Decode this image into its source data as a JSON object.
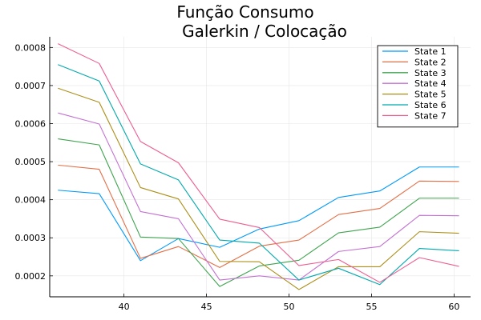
{
  "chart_data": {
    "type": "line",
    "title_line1": "Função Consumo",
    "title_line2": "Galerkin / Colocação",
    "xlabel": "",
    "ylabel": "",
    "xlim": [
      35.5,
      61.0
    ],
    "ylim": [
      0.000145,
      0.000828
    ],
    "x_ticks": [
      40,
      45,
      50,
      55,
      60
    ],
    "y_ticks": [
      0.0002,
      0.0003,
      0.0004,
      0.0005,
      0.0006,
      0.0007,
      0.0008
    ],
    "y_tick_labels": [
      "0.0002",
      "0.0003",
      "0.0004",
      "0.0005",
      "0.0006",
      "0.0007",
      "0.0008"
    ],
    "grid": true,
    "legend_position": "top-right",
    "x": [
      36.0,
      38.5,
      41.0,
      43.3,
      45.8,
      48.2,
      50.6,
      53.0,
      55.5,
      57.9,
      60.3
    ],
    "series": [
      {
        "name": "State 1",
        "color": "#009AFA",
        "values": [
          0.000425,
          0.000416,
          0.00024,
          0.000298,
          0.000275,
          0.000323,
          0.000345,
          0.000406,
          0.000423,
          0.000486,
          0.000486
        ]
      },
      {
        "name": "State 2",
        "color": "#E36F47",
        "values": [
          0.000491,
          0.00048,
          0.000246,
          0.000277,
          0.000222,
          0.000278,
          0.000294,
          0.000361,
          0.000377,
          0.000449,
          0.000448
        ]
      },
      {
        "name": "State 3",
        "color": "#3EA44E",
        "values": [
          0.00056,
          0.000544,
          0.000302,
          0.000298,
          0.000172,
          0.000226,
          0.000241,
          0.000313,
          0.000328,
          0.000404,
          0.000404
        ]
      },
      {
        "name": "State 4",
        "color": "#C371D2",
        "values": [
          0.000628,
          0.000599,
          0.000369,
          0.00035,
          0.000189,
          0.0002,
          0.000189,
          0.000264,
          0.000277,
          0.000359,
          0.000358
        ]
      },
      {
        "name": "State 5",
        "color": "#AC8E18",
        "values": [
          0.000693,
          0.000656,
          0.000432,
          0.000402,
          0.000238,
          0.000237,
          0.000164,
          0.000224,
          0.000224,
          0.000316,
          0.000312
        ]
      },
      {
        "name": "State 6",
        "color": "#00A9AD",
        "values": [
          0.000755,
          0.000712,
          0.000494,
          0.000452,
          0.000294,
          0.000286,
          0.000189,
          0.00022,
          0.000177,
          0.000272,
          0.000266
        ]
      },
      {
        "name": "State 7",
        "color": "#ED5D92",
        "values": [
          0.00081,
          0.000758,
          0.000553,
          0.000497,
          0.000349,
          0.000327,
          0.000227,
          0.000243,
          0.000183,
          0.000248,
          0.000225
        ]
      }
    ]
  }
}
